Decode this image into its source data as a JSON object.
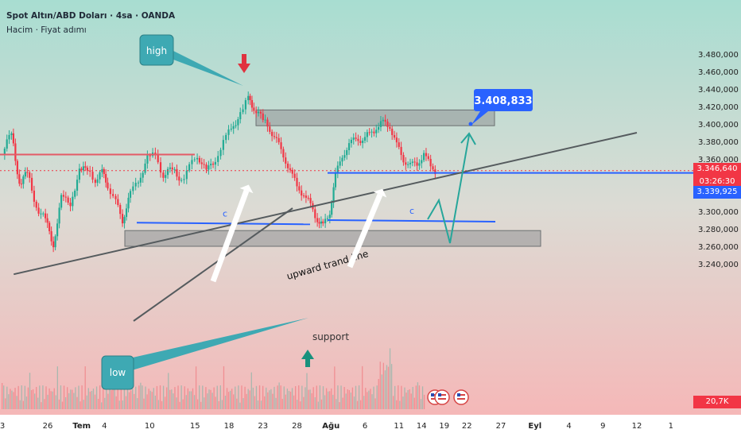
{
  "header": {
    "symbol_line": "Spot Altın/ABD Doları · 4sa · OANDA",
    "indicator_line": "Hacim · Fiyat adımı"
  },
  "colors": {
    "bull": "#22ab94",
    "bear": "#f23645",
    "support_zone": "#8f9496",
    "upper_zone": "#8f9496",
    "trend_line": "#555b5e",
    "teal_callout": "#3ea9b3",
    "blue_box": "#2962ff",
    "h_blue": "#2962ff",
    "red_level": "#e35b66"
  },
  "chart_data": {
    "type": "candlestick",
    "title": "Spot Altın/ABD Doları · 4sa · OANDA",
    "indicator": "Hacim · Fiyat adımı",
    "ylim": [
      3220,
      3490
    ],
    "y_ticks": [
      "3.480,000",
      "3.460,000",
      "3.440,000",
      "3.420,000",
      "3.400,000",
      "3.380,000",
      "3.360,000",
      "3.340,000",
      "3.320,000",
      "3.300,000",
      "3.280,000",
      "3.260,000",
      "3.240,000"
    ],
    "y_tick_values": [
      3480,
      3460,
      3440,
      3420,
      3400,
      3380,
      3360,
      3340,
      3320,
      3300,
      3280,
      3260,
      3240
    ],
    "x_ticks": [
      "3",
      "26",
      "Tem",
      "4",
      "10",
      "15",
      "18",
      "23",
      "28",
      "Ağu",
      "6",
      "11",
      "14",
      "19",
      "22",
      "27",
      "Eyl",
      "4",
      "9",
      "12",
      "1"
    ],
    "x_tick_trading_days": [
      0,
      4,
      7,
      9,
      13,
      17,
      20,
      23,
      26,
      29,
      32,
      35,
      37,
      39,
      41,
      44,
      47,
      50,
      53,
      56,
      59
    ],
    "last_price_label": "3.346,640",
    "countdown_label": "03:26:30",
    "level_label": "3.339,925",
    "volume_label": "20,7K",
    "price_series": [
      [
        0,
        3365
      ],
      [
        0.8,
        3392
      ],
      [
        1.5,
        3330
      ],
      [
        2.2,
        3345
      ],
      [
        3,
        3305
      ],
      [
        3.8,
        3290
      ],
      [
        4.5,
        3262
      ],
      [
        5.2,
        3315
      ],
      [
        6,
        3310
      ],
      [
        6.8,
        3345
      ],
      [
        7.5,
        3350
      ],
      [
        8.2,
        3335
      ],
      [
        8.8,
        3345
      ],
      [
        9.3,
        3330
      ],
      [
        10,
        3310
      ],
      [
        10.6,
        3290
      ],
      [
        11.3,
        3320
      ],
      [
        12,
        3335
      ],
      [
        12.8,
        3360
      ],
      [
        13.5,
        3365
      ],
      [
        14.2,
        3340
      ],
      [
        15,
        3350
      ],
      [
        15.8,
        3335
      ],
      [
        16.5,
        3350
      ],
      [
        17.2,
        3365
      ],
      [
        18,
        3345
      ],
      [
        18.8,
        3360
      ],
      [
        19.5,
        3380
      ],
      [
        20.2,
        3395
      ],
      [
        21,
        3410
      ],
      [
        21.7,
        3430
      ],
      [
        22.2,
        3418
      ],
      [
        23,
        3405
      ],
      [
        23.6,
        3395
      ],
      [
        24.2,
        3380
      ],
      [
        24.8,
        3365
      ],
      [
        25.4,
        3345
      ],
      [
        26,
        3330
      ],
      [
        26.6,
        3318
      ],
      [
        27.2,
        3308
      ],
      [
        27.8,
        3290
      ],
      [
        28.3,
        3283
      ],
      [
        28.9,
        3300
      ],
      [
        29.4,
        3340
      ],
      [
        30,
        3365
      ],
      [
        30.6,
        3375
      ],
      [
        31.2,
        3385
      ],
      [
        31.8,
        3380
      ],
      [
        32.4,
        3390
      ],
      [
        33,
        3395
      ],
      [
        33.6,
        3402
      ],
      [
        34.2,
        3398
      ],
      [
        34.8,
        3375
      ],
      [
        35.4,
        3360
      ],
      [
        36,
        3352
      ],
      [
        36.6,
        3355
      ],
      [
        37.2,
        3365
      ],
      [
        37.8,
        3352
      ],
      [
        38.2,
        3346.6
      ]
    ],
    "annotations": {
      "high_label": "high",
      "low_label": "low",
      "support_label": "support",
      "trend_label": "upward trand line",
      "c_label_left": "c",
      "c_label_right": "c",
      "target_label": "3.408,833",
      "target_price": 3408.833,
      "red_level_price": 3365,
      "blue_level_price": 3344,
      "c_line_left_price": 3287,
      "c_line_right_price": 3290,
      "upper_zone": [
        3398,
        3416
      ],
      "support_zone": [
        3260,
        3278
      ],
      "trend_from": [
        1,
        3228
      ],
      "trend_to": [
        56,
        3390
      ]
    }
  }
}
